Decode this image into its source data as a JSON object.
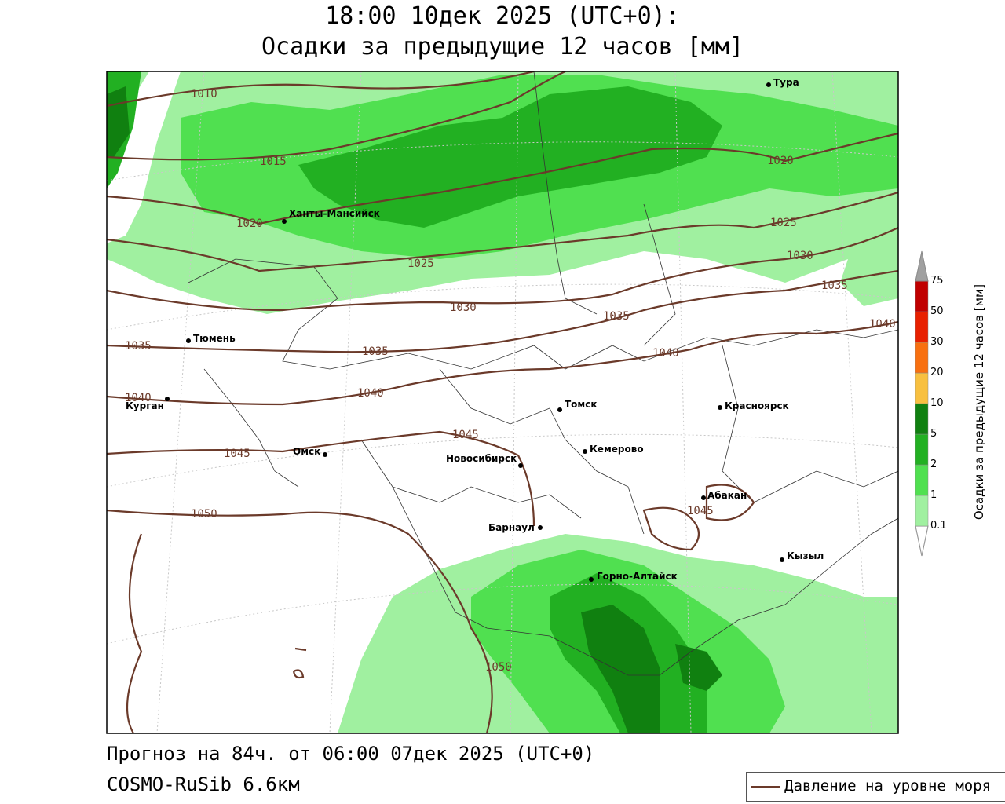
{
  "title": {
    "line1": "18:00 10дек 2025 (UTC+0):",
    "line2": "Осадки за предыдущие 12 часов [мм]"
  },
  "footer": {
    "forecast": "Прогноз на 84ч. от 06:00 07дек 2025 (UTC+0)",
    "model": "COSMO-RuSib 6.6км"
  },
  "legend": {
    "isobar_label": "Давление на уровне моря",
    "isobar_color": "#6b3a2a"
  },
  "colorbar": {
    "title": "Осадки за предыдущие 12 часов [мм]",
    "ticks": [
      "0.1",
      "1",
      "2",
      "5",
      "10",
      "20",
      "30",
      "50",
      "75"
    ],
    "colors": [
      "#a0f0a0",
      "#50e050",
      "#22b022",
      "#108010",
      "#f8c040",
      "#f87010",
      "#e82000",
      "#c00000",
      "#a0a0a0"
    ]
  },
  "cities": [
    {
      "name": "Тура"
    },
    {
      "name": "Ханты-Мансийск"
    },
    {
      "name": "Тюмень"
    },
    {
      "name": "Курган"
    },
    {
      "name": "Омск"
    },
    {
      "name": "Томск"
    },
    {
      "name": "Красноярск"
    },
    {
      "name": "Кемерово"
    },
    {
      "name": "Новосибирск"
    },
    {
      "name": "Абакан"
    },
    {
      "name": "Барнаул"
    },
    {
      "name": "Горно-Алтайск"
    },
    {
      "name": "Кызыл"
    }
  ],
  "isobar_labels": [
    "1010",
    "1015",
    "1020",
    "1020",
    "1025",
    "1025",
    "1030",
    "1030",
    "1035",
    "1035",
    "1035",
    "1035",
    "1040",
    "1040",
    "1040",
    "1040",
    "1045",
    "1045",
    "1045",
    "1050",
    "1050"
  ]
}
